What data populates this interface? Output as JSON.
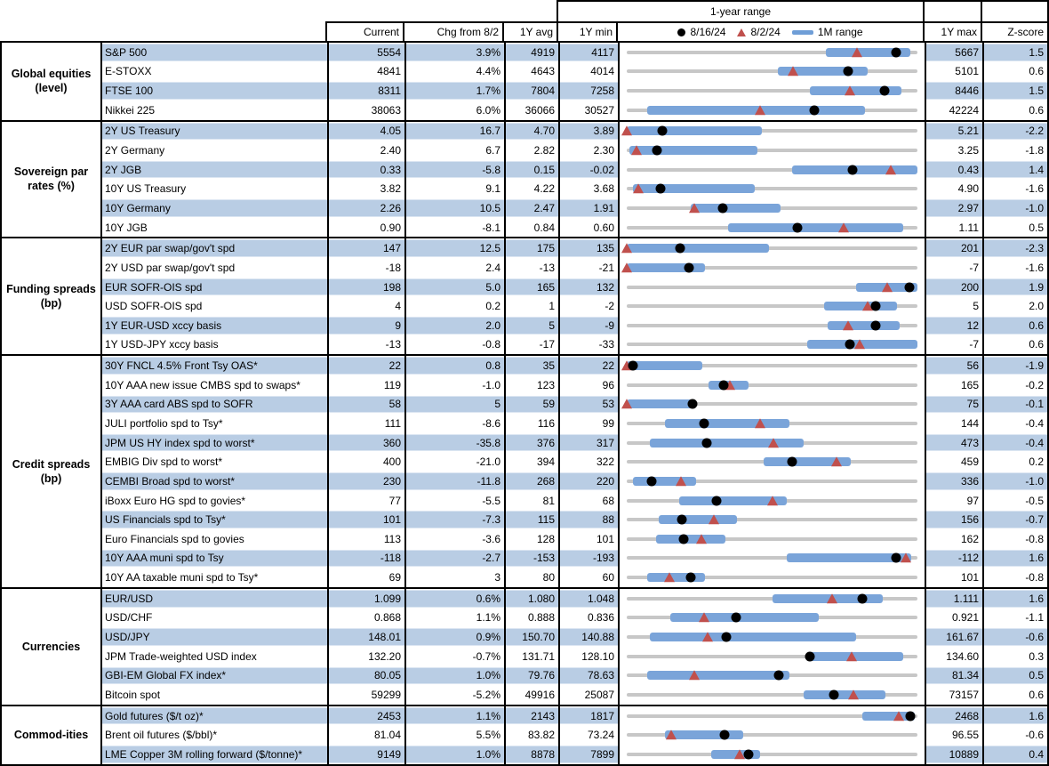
{
  "header": {
    "col_current": "Current",
    "col_chg": "Chg from 8/2",
    "col_avg": "1Y avg",
    "col_min": "1Y min",
    "col_max": "1Y max",
    "col_z": "Z-score",
    "range_title": "1-year range",
    "legend_dot": "8/16/24",
    "legend_tri": "8/2/24",
    "legend_bar": "1M range"
  },
  "colors": {
    "row_highlight": "#b9cde4",
    "range_bar": "#7aa4d9",
    "track": "#c7c7c7",
    "dot": "#000000",
    "triangle": "#c0504d"
  },
  "chart_data": {
    "type": "table",
    "title": "1-year range",
    "columns": [
      "Current",
      "Chg from 8/2",
      "1Y avg",
      "1Y min",
      "1-year range",
      "1Y max",
      "Z-score"
    ],
    "legend": [
      {
        "marker": "dot",
        "label": "8/16/24"
      },
      {
        "marker": "triangle",
        "label": "8/2/24"
      },
      {
        "marker": "bar",
        "label": "1M range"
      }
    ],
    "sections": [
      {
        "category": "Global equities (level)",
        "rows": [
          {
            "name": "S&P 500",
            "current": "5554",
            "chg": "3.9%",
            "avg": "4919",
            "min": "4117",
            "max": "5667",
            "z": "1.5",
            "chart": {
              "bar": [
                0.685,
                0.975
              ],
              "dot": 0.927,
              "tri": 0.792
            }
          },
          {
            "name": "E-STOXX",
            "current": "4841",
            "chg": "4.4%",
            "avg": "4643",
            "min": "4014",
            "max": "5101",
            "z": "0.6",
            "chart": {
              "bar": [
                0.52,
                0.83
              ],
              "dot": 0.761,
              "tri": 0.573
            }
          },
          {
            "name": "FTSE 100",
            "current": "8311",
            "chg": "1.7%",
            "avg": "7804",
            "min": "7258",
            "max": "8446",
            "z": "1.5",
            "chart": {
              "bar": [
                0.63,
                0.945
              ],
              "dot": 0.886,
              "tri": 0.769
            }
          },
          {
            "name": "Nikkei 225",
            "current": "38063",
            "chg": "6.0%",
            "avg": "36066",
            "min": "30527",
            "max": "42224",
            "z": "0.6",
            "chart": {
              "bar": [
                0.07,
                0.82
              ],
              "dot": 0.644,
              "tri": 0.46
            }
          }
        ]
      },
      {
        "category": "Sovereign par rates (%)",
        "rows": [
          {
            "name": "2Y US Treasury",
            "current": "4.05",
            "chg": "16.7",
            "avg": "4.70",
            "min": "3.89",
            "max": "5.21",
            "z": "-2.2",
            "chart": {
              "bar": [
                0.0,
                0.465
              ],
              "dot": 0.121,
              "tri": 0.0
            }
          },
          {
            "name": "2Y Germany",
            "current": "2.40",
            "chg": "6.7",
            "avg": "2.82",
            "min": "2.30",
            "max": "3.25",
            "z": "-1.8",
            "chart": {
              "bar": [
                0.01,
                0.45
              ],
              "dot": 0.105,
              "tri": 0.035
            }
          },
          {
            "name": "2Y JGB",
            "current": "0.33",
            "chg": "-5.8",
            "avg": "0.15",
            "min": "-0.02",
            "max": "0.43",
            "z": "1.4",
            "chart": {
              "bar": [
                0.57,
                1.0
              ],
              "dot": 0.778,
              "tri": 0.907
            }
          },
          {
            "name": "10Y US Treasury",
            "current": "3.82",
            "chg": "9.1",
            "avg": "4.22",
            "min": "3.68",
            "max": "4.90",
            "z": "-1.6",
            "chart": {
              "bar": [
                0.02,
                0.44
              ],
              "dot": 0.115,
              "tri": 0.04
            }
          },
          {
            "name": "10Y Germany",
            "current": "2.26",
            "chg": "10.5",
            "avg": "2.47",
            "min": "1.91",
            "max": "2.97",
            "z": "-1.0",
            "chart": {
              "bar": [
                0.22,
                0.53
              ],
              "dot": 0.33,
              "tri": 0.231
            }
          },
          {
            "name": "10Y JGB",
            "current": "0.90",
            "chg": "-8.1",
            "avg": "0.84",
            "min": "0.60",
            "max": "1.11",
            "z": "0.5",
            "chart": {
              "bar": [
                0.35,
                0.95
              ],
              "dot": 0.588,
              "tri": 0.747
            }
          }
        ]
      },
      {
        "category": "Funding spreads (bp)",
        "rows": [
          {
            "name": "2Y EUR par swap/gov't spd",
            "current": "147",
            "chg": "12.5",
            "avg": "175",
            "min": "135",
            "max": "201",
            "z": "-2.3",
            "chart": {
              "bar": [
                0.0,
                0.49
              ],
              "dot": 0.182,
              "tri": 0.0
            }
          },
          {
            "name": "2Y USD par swap/gov't spd",
            "current": "-18",
            "chg": "2.4",
            "avg": "-13",
            "min": "-21",
            "max": "-7",
            "z": "-1.6",
            "chart": {
              "bar": [
                0.0,
                0.27
              ],
              "dot": 0.214,
              "tri": 0.0
            }
          },
          {
            "name": "EUR SOFR-OIS spd",
            "current": "198",
            "chg": "5.0",
            "avg": "165",
            "min": "132",
            "max": "200",
            "z": "1.9",
            "chart": {
              "bar": [
                0.79,
                1.0
              ],
              "dot": 0.971,
              "tri": 0.897
            }
          },
          {
            "name": "USD SOFR-OIS spd",
            "current": "4",
            "chg": "0.2",
            "avg": "1",
            "min": "-2",
            "max": "5",
            "z": "2.0",
            "chart": {
              "bar": [
                0.68,
                0.93
              ],
              "dot": 0.857,
              "tri": 0.829
            }
          },
          {
            "name": "1Y EUR-USD xccy basis",
            "current": "9",
            "chg": "2.0",
            "avg": "5",
            "min": "-9",
            "max": "12",
            "z": "0.6",
            "chart": {
              "bar": [
                0.69,
                0.94
              ],
              "dot": 0.857,
              "tri": 0.762
            }
          },
          {
            "name": "1Y USD-JPY xccy basis",
            "current": "-13",
            "chg": "-0.8",
            "avg": "-17",
            "min": "-33",
            "max": "-7",
            "z": "0.6",
            "chart": {
              "bar": [
                0.62,
                1.0
              ],
              "dot": 0.769,
              "tri": 0.8
            }
          }
        ]
      },
      {
        "category": "Credit spreads (bp)",
        "rows": [
          {
            "name": "30Y FNCL 4.5% Front Tsy OAS*",
            "current": "22",
            "chg": "0.8",
            "avg": "35",
            "min": "22",
            "max": "56",
            "z": "-1.9",
            "chart": {
              "bar": [
                0.0,
                0.26
              ],
              "dot": 0.02,
              "tri": 0.0
            }
          },
          {
            "name": "10Y AAA new issue CMBS spd to swaps*",
            "current": "119",
            "chg": "-1.0",
            "avg": "123",
            "min": "96",
            "max": "165",
            "z": "-0.2",
            "chart": {
              "bar": [
                0.28,
                0.42
              ],
              "dot": 0.333,
              "tri": 0.355
            }
          },
          {
            "name": "3Y AAA card ABS spd to SOFR",
            "current": "58",
            "chg": "5",
            "avg": "59",
            "min": "53",
            "max": "75",
            "z": "-0.1",
            "chart": {
              "bar": [
                0.0,
                0.23
              ],
              "dot": 0.227,
              "tri": 0.0
            }
          },
          {
            "name": "JULI portfolio spd to Tsy*",
            "current": "111",
            "chg": "-8.6",
            "avg": "116",
            "min": "99",
            "max": "144",
            "z": "-0.4",
            "chart": {
              "bar": [
                0.13,
                0.56
              ],
              "dot": 0.267,
              "tri": 0.458
            }
          },
          {
            "name": "JPM US HY index spd to worst*",
            "current": "360",
            "chg": "-35.8",
            "avg": "376",
            "min": "317",
            "max": "473",
            "z": "-0.4",
            "chart": {
              "bar": [
                0.08,
                0.61
              ],
              "dot": 0.276,
              "tri": 0.505
            }
          },
          {
            "name": "EMBIG Div spd to worst*",
            "current": "400",
            "chg": "-21.0",
            "avg": "394",
            "min": "322",
            "max": "459",
            "z": "0.2",
            "chart": {
              "bar": [
                0.47,
                0.77
              ],
              "dot": 0.569,
              "tri": 0.723
            }
          },
          {
            "name": "CEMBI Broad spd to worst*",
            "current": "230",
            "chg": "-11.8",
            "avg": "268",
            "min": "220",
            "max": "336",
            "z": "-1.0",
            "chart": {
              "bar": [
                0.02,
                0.24
              ],
              "dot": 0.086,
              "tri": 0.188
            }
          },
          {
            "name": "iBoxx Euro HG spd to govies*",
            "current": "77",
            "chg": "-5.5",
            "avg": "81",
            "min": "68",
            "max": "97",
            "z": "-0.5",
            "chart": {
              "bar": [
                0.18,
                0.55
              ],
              "dot": 0.31,
              "tri": 0.5
            }
          },
          {
            "name": "US Financials spd to Tsy*",
            "current": "101",
            "chg": "-7.3",
            "avg": "115",
            "min": "88",
            "max": "156",
            "z": "-0.7",
            "chart": {
              "bar": [
                0.11,
                0.38
              ],
              "dot": 0.191,
              "tri": 0.299
            }
          },
          {
            "name": "Euro Financials spd to govies",
            "current": "113",
            "chg": "-3.6",
            "avg": "128",
            "min": "101",
            "max": "162",
            "z": "-0.8",
            "chart": {
              "bar": [
                0.1,
                0.34
              ],
              "dot": 0.197,
              "tri": 0.256
            }
          },
          {
            "name": "10Y AAA muni spd to Tsy",
            "current": "-118",
            "chg": "-2.7",
            "avg": "-153",
            "min": "-193",
            "max": "-112",
            "z": "1.6",
            "chart": {
              "bar": [
                0.55,
                0.98
              ],
              "dot": 0.926,
              "tri": 0.959
            }
          },
          {
            "name": "10Y AA taxable muni spd to Tsy*",
            "current": "69",
            "chg": "3",
            "avg": "80",
            "min": "60",
            "max": "101",
            "z": "-0.8",
            "chart": {
              "bar": [
                0.07,
                0.27
              ],
              "dot": 0.22,
              "tri": 0.146
            }
          }
        ]
      },
      {
        "category": "Currencies",
        "rows": [
          {
            "name": "EUR/USD",
            "current": "1.099",
            "chg": "0.6%",
            "avg": "1.080",
            "min": "1.048",
            "max": "1.111",
            "z": "1.6",
            "chart": {
              "bar": [
                0.5,
                0.88
              ],
              "dot": 0.81,
              "tri": 0.705
            }
          },
          {
            "name": "USD/CHF",
            "current": "0.868",
            "chg": "1.1%",
            "avg": "0.888",
            "min": "0.836",
            "max": "0.921",
            "z": "-1.1",
            "chart": {
              "bar": [
                0.15,
                0.66
              ],
              "dot": 0.376,
              "tri": 0.266
            }
          },
          {
            "name": "USD/JPY",
            "current": "148.01",
            "chg": "0.9%",
            "avg": "150.70",
            "min": "140.88",
            "max": "161.67",
            "z": "-0.6",
            "chart": {
              "bar": [
                0.08,
                0.79
              ],
              "dot": 0.343,
              "tri": 0.279
            }
          },
          {
            "name": "JPM Trade-weighted USD index",
            "current": "132.20",
            "chg": "-0.7%",
            "avg": "131.71",
            "min": "128.10",
            "max": "134.60",
            "z": "0.3",
            "chart": {
              "bar": [
                0.62,
                0.95
              ],
              "dot": 0.631,
              "tri": 0.774
            }
          },
          {
            "name": "GBI-EM Global FX index*",
            "current": "80.05",
            "chg": "1.0%",
            "avg": "79.76",
            "min": "78.63",
            "max": "81.34",
            "z": "0.5",
            "chart": {
              "bar": [
                0.07,
                0.56
              ],
              "dot": 0.524,
              "tri": 0.232
            }
          },
          {
            "name": "Bitcoin spot",
            "current": "59299",
            "chg": "-5.2%",
            "avg": "49916",
            "min": "25087",
            "max": "73157",
            "z": "0.6",
            "chart": {
              "bar": [
                0.61,
                0.89
              ],
              "dot": 0.712,
              "tri": 0.779
            }
          }
        ]
      },
      {
        "category": "Commod-ities",
        "rows": [
          {
            "name": "Gold futures ($/t oz)*",
            "current": "2453",
            "chg": "1.1%",
            "avg": "2143",
            "min": "1817",
            "max": "2468",
            "z": "1.6",
            "chart": {
              "bar": [
                0.81,
                0.99
              ],
              "dot": 0.977,
              "tri": 0.936
            }
          },
          {
            "name": "Brent oil futures ($/bbl)*",
            "current": "81.04",
            "chg": "5.5%",
            "avg": "83.82",
            "min": "73.24",
            "max": "96.55",
            "z": "-0.6",
            "chart": {
              "bar": [
                0.13,
                0.4
              ],
              "dot": 0.335,
              "tri": 0.154
            }
          },
          {
            "name": "LME Copper 3M rolling forward ($/tonne)*",
            "current": "9149",
            "chg": "1.0%",
            "avg": "8878",
            "min": "7899",
            "max": "10889",
            "z": "0.4",
            "chart": {
              "bar": [
                0.29,
                0.46
              ],
              "dot": 0.418,
              "tri": 0.388
            }
          }
        ]
      }
    ]
  }
}
